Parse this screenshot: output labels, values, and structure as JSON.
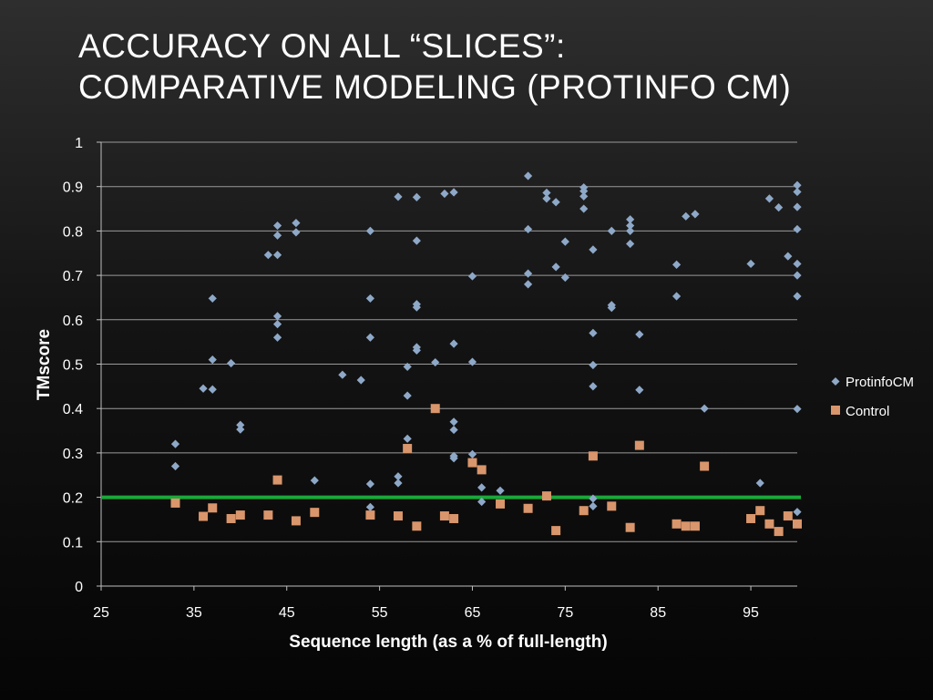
{
  "slide": {
    "title_line1": "ACCURACY ON ALL “SLICES”:",
    "title_line2": "COMPARATIVE MODELING (PROTINFO CM)"
  },
  "chart_data": {
    "type": "scatter",
    "xlabel": "Sequence length (as a % of full-length)",
    "ylabel": "TMscore",
    "xlim": [
      25,
      100
    ],
    "ylim": [
      0,
      1
    ],
    "x_ticks": [
      25,
      35,
      45,
      55,
      65,
      75,
      85,
      95
    ],
    "y_ticks": [
      0,
      0.1,
      0.2,
      0.3,
      0.4,
      0.5,
      0.6,
      0.7,
      0.8,
      0.9,
      1
    ],
    "grid": "horizontal",
    "legend_position": "right",
    "reference_line": {
      "y": 0.2,
      "color": "#1aa83a"
    },
    "series": [
      {
        "name": "ProtinfoCM",
        "marker": "diamond",
        "color": "#8ea8c8",
        "points": [
          [
            33,
            0.32
          ],
          [
            33,
            0.27
          ],
          [
            36,
            0.445
          ],
          [
            37,
            0.648
          ],
          [
            37,
            0.51
          ],
          [
            37,
            0.443
          ],
          [
            39,
            0.502
          ],
          [
            40,
            0.363
          ],
          [
            40,
            0.353
          ],
          [
            43,
            0.746
          ],
          [
            44,
            0.812
          ],
          [
            44,
            0.79
          ],
          [
            44,
            0.746
          ],
          [
            44,
            0.608
          ],
          [
            44,
            0.59
          ],
          [
            44,
            0.56
          ],
          [
            46,
            0.818
          ],
          [
            46,
            0.797
          ],
          [
            48,
            0.238
          ],
          [
            51,
            0.476
          ],
          [
            53,
            0.464
          ],
          [
            54,
            0.8
          ],
          [
            54,
            0.648
          ],
          [
            54,
            0.56
          ],
          [
            54,
            0.23
          ],
          [
            54,
            0.178
          ],
          [
            57,
            0.877
          ],
          [
            57,
            0.247
          ],
          [
            57,
            0.232
          ],
          [
            58,
            0.494
          ],
          [
            58,
            0.429
          ],
          [
            58,
            0.332
          ],
          [
            59,
            0.876
          ],
          [
            59,
            0.778
          ],
          [
            59,
            0.635
          ],
          [
            59,
            0.628
          ],
          [
            59,
            0.538
          ],
          [
            59,
            0.531
          ],
          [
            61,
            0.504
          ],
          [
            62,
            0.884
          ],
          [
            63,
            0.887
          ],
          [
            63,
            0.546
          ],
          [
            63,
            0.37
          ],
          [
            63,
            0.352
          ],
          [
            63,
            0.293
          ],
          [
            63,
            0.288
          ],
          [
            65,
            0.698
          ],
          [
            65,
            0.505
          ],
          [
            65,
            0.297
          ],
          [
            66,
            0.222
          ],
          [
            66,
            0.19
          ],
          [
            68,
            0.215
          ],
          [
            71,
            0.924
          ],
          [
            71,
            0.804
          ],
          [
            71,
            0.704
          ],
          [
            71,
            0.68
          ],
          [
            73,
            0.886
          ],
          [
            73,
            0.873
          ],
          [
            74,
            0.865
          ],
          [
            74,
            0.719
          ],
          [
            75,
            0.776
          ],
          [
            75,
            0.695
          ],
          [
            77,
            0.898
          ],
          [
            77,
            0.89
          ],
          [
            77,
            0.878
          ],
          [
            77,
            0.85
          ],
          [
            78,
            0.758
          ],
          [
            78,
            0.57
          ],
          [
            78,
            0.498
          ],
          [
            78,
            0.45
          ],
          [
            78,
            0.197
          ],
          [
            78,
            0.18
          ],
          [
            80,
            0.8
          ],
          [
            80,
            0.633
          ],
          [
            80,
            0.627
          ],
          [
            82,
            0.826
          ],
          [
            82,
            0.812
          ],
          [
            82,
            0.8
          ],
          [
            82,
            0.771
          ],
          [
            83,
            0.567
          ],
          [
            83,
            0.442
          ],
          [
            87,
            0.724
          ],
          [
            87,
            0.653
          ],
          [
            88,
            0.833
          ],
          [
            89,
            0.838
          ],
          [
            90,
            0.4
          ],
          [
            95,
            0.726
          ],
          [
            96,
            0.232
          ],
          [
            97,
            0.873
          ],
          [
            98,
            0.853
          ],
          [
            99,
            0.743
          ],
          [
            100,
            0.903
          ],
          [
            100,
            0.888
          ],
          [
            100,
            0.854
          ],
          [
            100,
            0.804
          ],
          [
            100,
            0.726
          ],
          [
            100,
            0.7
          ],
          [
            100,
            0.653
          ],
          [
            100,
            0.399
          ],
          [
            100,
            0.167
          ]
        ]
      },
      {
        "name": "Control",
        "marker": "square",
        "color": "#d9956b",
        "points": [
          [
            33,
            0.187
          ],
          [
            36,
            0.157
          ],
          [
            37,
            0.176
          ],
          [
            39,
            0.152
          ],
          [
            40,
            0.16
          ],
          [
            43,
            0.16
          ],
          [
            44,
            0.239
          ],
          [
            46,
            0.147
          ],
          [
            48,
            0.166
          ],
          [
            54,
            0.16
          ],
          [
            57,
            0.158
          ],
          [
            58,
            0.31
          ],
          [
            59,
            0.135
          ],
          [
            61,
            0.4
          ],
          [
            62,
            0.158
          ],
          [
            63,
            0.152
          ],
          [
            65,
            0.278
          ],
          [
            66,
            0.262
          ],
          [
            68,
            0.185
          ],
          [
            71,
            0.175
          ],
          [
            73,
            0.203
          ],
          [
            74,
            0.125
          ],
          [
            77,
            0.17
          ],
          [
            78,
            0.293
          ],
          [
            80,
            0.18
          ],
          [
            82,
            0.132
          ],
          [
            83,
            0.317
          ],
          [
            87,
            0.14
          ],
          [
            88,
            0.135
          ],
          [
            89,
            0.135
          ],
          [
            90,
            0.27
          ],
          [
            95,
            0.152
          ],
          [
            96,
            0.17
          ],
          [
            97,
            0.14
          ],
          [
            98,
            0.123
          ],
          [
            99,
            0.158
          ],
          [
            100,
            0.14
          ]
        ]
      }
    ]
  }
}
